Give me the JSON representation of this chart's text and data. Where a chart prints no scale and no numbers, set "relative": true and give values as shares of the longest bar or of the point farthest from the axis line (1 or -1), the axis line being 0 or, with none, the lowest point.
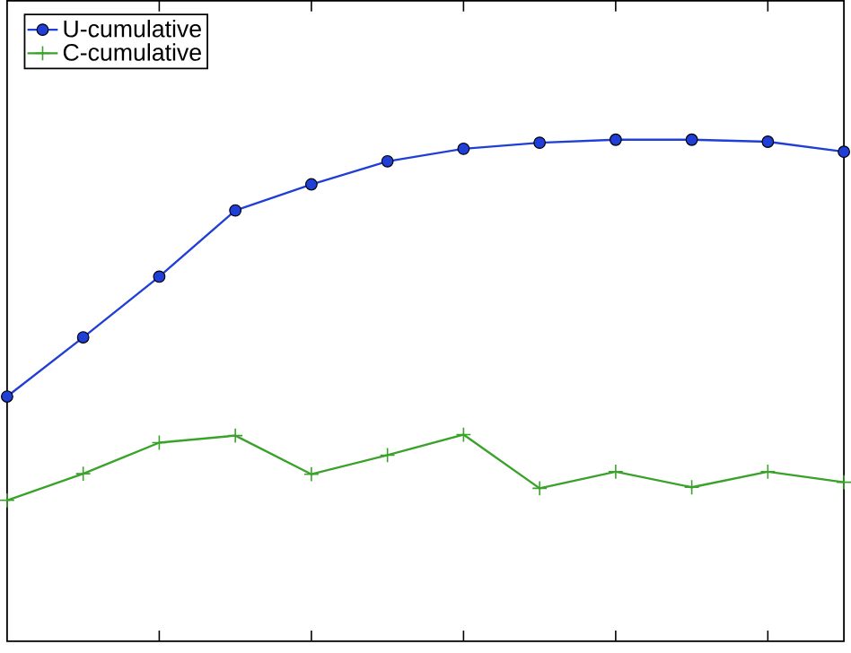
{
  "chart_data": {
    "type": "line",
    "relative": true,
    "categories": [
      null,
      null,
      null,
      null,
      null,
      null,
      null,
      null,
      null,
      null,
      null,
      null
    ],
    "legend": "top left",
    "series": [
      {
        "name": "U-cumulative",
        "color": "#1f3fd6",
        "marker": "circle",
        "values": [
          0.488,
          0.606,
          0.727,
          0.859,
          0.911,
          0.957,
          0.982,
          0.994,
          1,
          1,
          0.996,
          0.976
        ]
      },
      {
        "name": "C-cumulative",
        "color": "#3aa22a",
        "marker": "cross",
        "values": [
          0.281,
          0.334,
          0.396,
          0.41,
          0.333,
          0.371,
          0.412,
          0.305,
          0.338,
          0.307,
          0.338,
          0.317
        ]
      }
    ]
  }
}
